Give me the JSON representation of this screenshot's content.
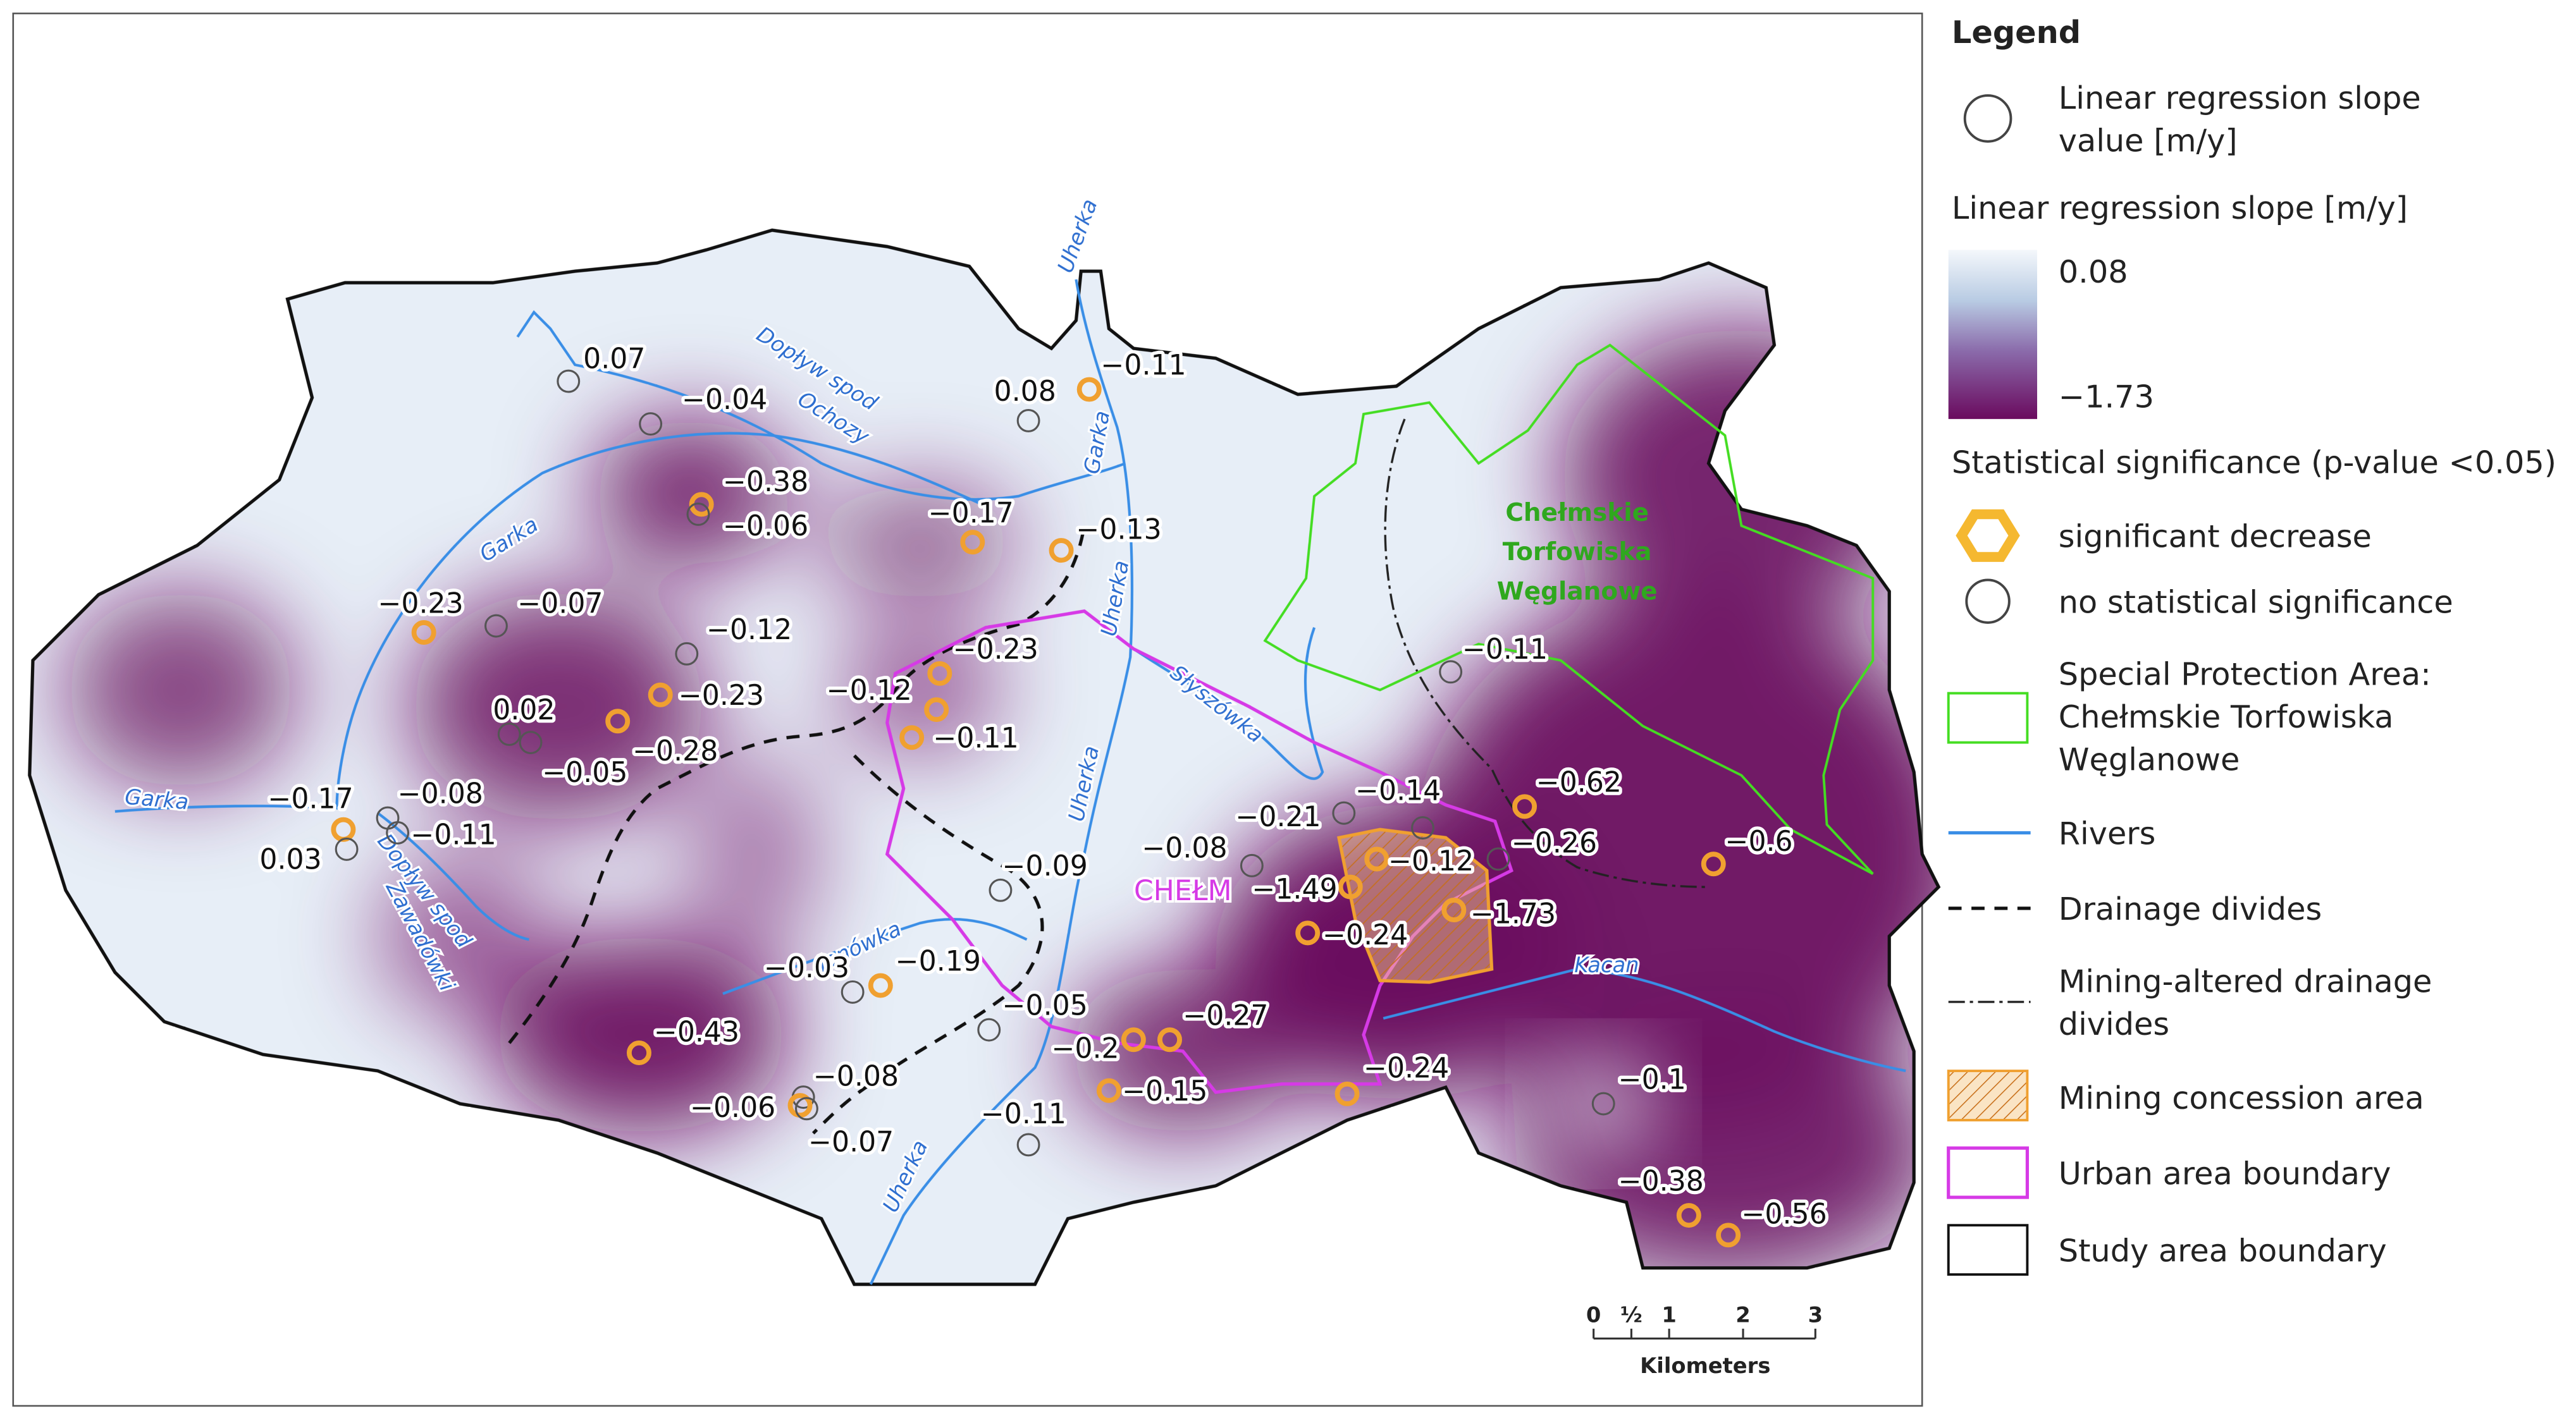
{
  "legend": {
    "title": "Legend",
    "slope_value": [
      "Linear regression slope",
      "value [m/y]"
    ],
    "ramp_title": "Linear regression slope [m/y]",
    "ramp_max": "0.08",
    "ramp_min": "−1.73",
    "significance_title": "Statistical significance (p-value <0.05)",
    "significant": "significant decrease",
    "not_significant": "no statistical significance",
    "spa": [
      "Special Protection Area:",
      "Chełmskie Torfowiska",
      "Węglanowe"
    ],
    "rivers": "Rivers",
    "drainage": "Drainage divides",
    "mining_drainage": [
      "Mining-altered drainage",
      "divides"
    ],
    "concession": "Mining concession area",
    "urban": "Urban area boundary",
    "study": "Study area boundary"
  },
  "map": {
    "points": [
      {
        "label": "0.07",
        "significant": false
      },
      {
        "label": "−0.04",
        "significant": false
      },
      {
        "label": "0.08",
        "significant": false
      },
      {
        "label": "−0.11",
        "significant": true
      },
      {
        "label": "−0.38",
        "significant": true
      },
      {
        "label": "−0.06",
        "significant": false
      },
      {
        "label": "−0.17",
        "significant": true
      },
      {
        "label": "−0.13",
        "significant": true
      },
      {
        "label": "−0.23",
        "significant": true
      },
      {
        "label": "−0.07",
        "significant": false
      },
      {
        "label": "−0.12",
        "significant": false
      },
      {
        "label": "0.02",
        "significant": false
      },
      {
        "label": "−0.05",
        "significant": false
      },
      {
        "label": "−0.23",
        "significant": true
      },
      {
        "label": "−0.28",
        "significant": true
      },
      {
        "label": "−0.23",
        "significant": true
      },
      {
        "label": "−0.12",
        "significant": true
      },
      {
        "label": "−0.11",
        "significant": true
      },
      {
        "label": "−0.17",
        "significant": true
      },
      {
        "label": "−0.08",
        "significant": false
      },
      {
        "label": "−0.11",
        "significant": false
      },
      {
        "label": "0.03",
        "significant": false
      },
      {
        "label": "−0.09",
        "significant": false
      },
      {
        "label": "−0.08",
        "significant": false
      },
      {
        "label": "−0.21",
        "significant": false
      },
      {
        "label": "−0.14",
        "significant": false
      },
      {
        "label": "−0.62",
        "significant": true
      },
      {
        "label": "−0.26",
        "significant": false
      },
      {
        "label": "−0.12",
        "significant": true
      },
      {
        "label": "−1.49",
        "significant": true
      },
      {
        "label": "−1.73",
        "significant": true
      },
      {
        "label": "−0.24",
        "significant": true
      },
      {
        "label": "−0.6",
        "significant": true
      },
      {
        "label": "−0.11",
        "significant": false
      },
      {
        "label": "−0.03",
        "significant": false
      },
      {
        "label": "−0.19",
        "significant": true
      },
      {
        "label": "−0.05",
        "significant": false
      },
      {
        "label": "−0.2",
        "significant": true
      },
      {
        "label": "−0.27",
        "significant": true
      },
      {
        "label": "−0.15",
        "significant": true
      },
      {
        "label": "−0.24",
        "significant": true
      },
      {
        "label": "−0.43",
        "significant": true
      },
      {
        "label": "−0.08",
        "significant": false
      },
      {
        "label": "−0.06",
        "significant": true
      },
      {
        "label": "−0.07",
        "significant": false
      },
      {
        "label": "−0.11",
        "significant": false
      },
      {
        "label": "−0.1",
        "significant": false
      },
      {
        "label": "−0.38",
        "significant": true
      },
      {
        "label": "−0.56",
        "significant": true
      }
    ],
    "river_labels": [
      "Uherka",
      "Dopływ spod",
      "Ochozy",
      "Garka",
      "Garka",
      "Uherka",
      "Słyszówka",
      "Uherka",
      "Garka",
      "Dopływ spod",
      "Zawadówki",
      "Janówka",
      "Kacan",
      "Uherka"
    ],
    "city": "CHEŁM",
    "spa_label": [
      "Chełmskie",
      "Torfowiska",
      "Węglanowe"
    ]
  },
  "scale_bar": {
    "ticks": [
      "0",
      "½",
      "1",
      "2",
      "3"
    ],
    "unit": "Kilometers"
  }
}
